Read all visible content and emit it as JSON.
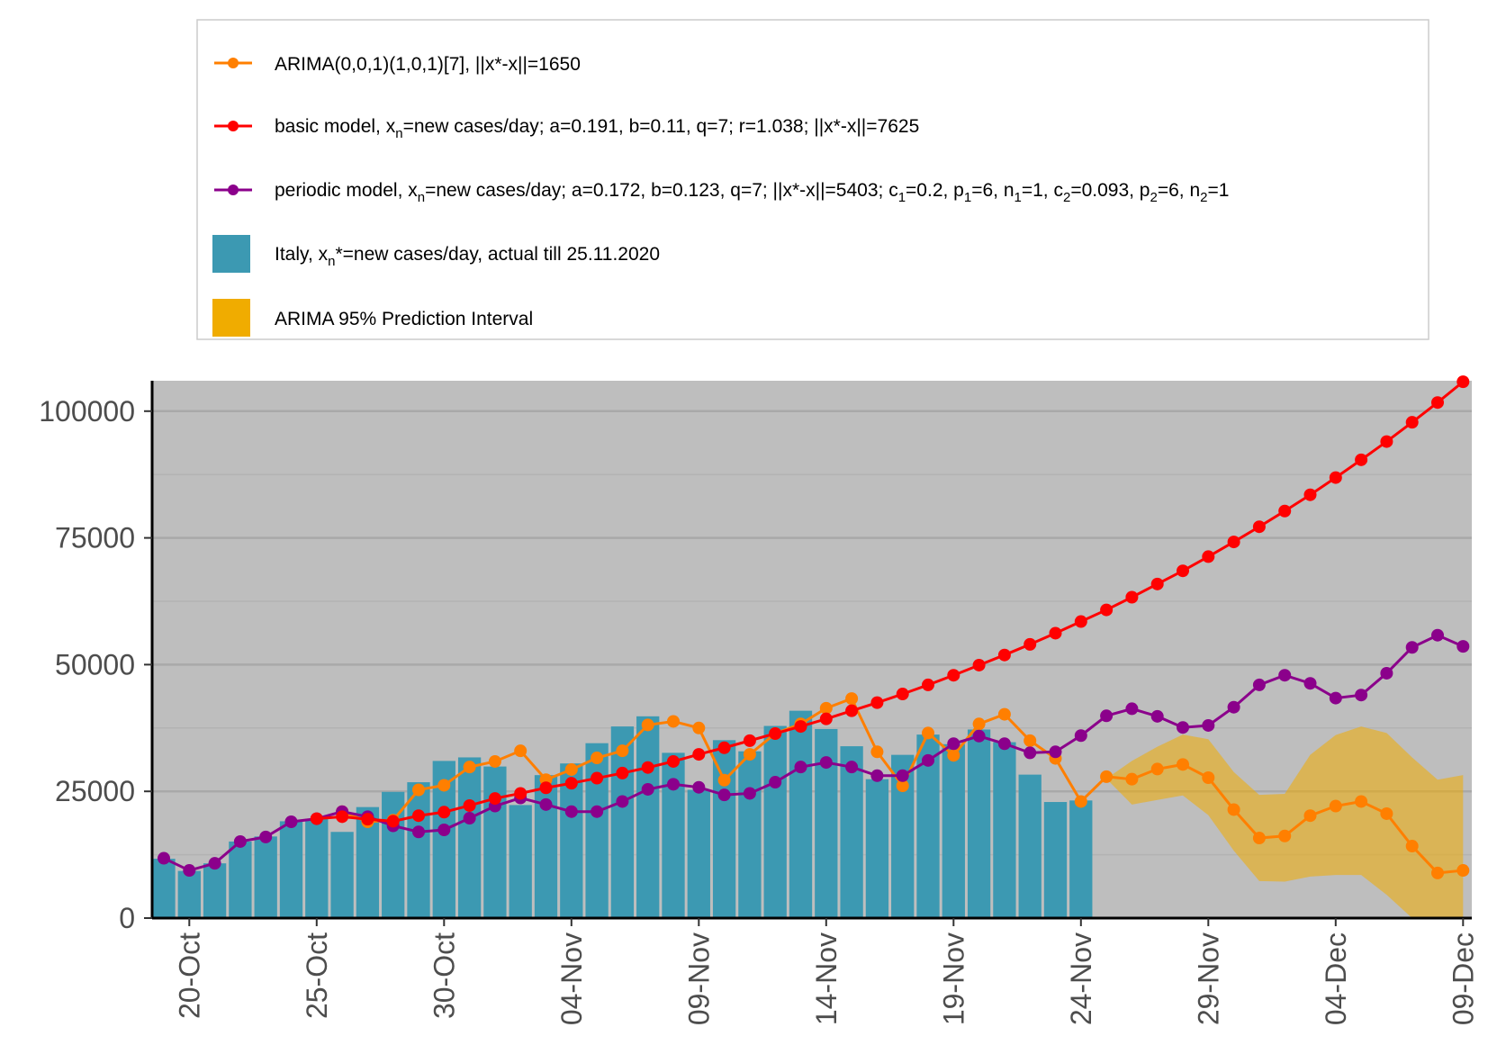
{
  "chart_data": {
    "type": "bar+line",
    "x_dates": [
      "19-Oct",
      "20-Oct",
      "21-Oct",
      "22-Oct",
      "23-Oct",
      "24-Oct",
      "25-Oct",
      "26-Oct",
      "27-Oct",
      "28-Oct",
      "29-Oct",
      "30-Oct",
      "31-Oct",
      "01-Nov",
      "02-Nov",
      "03-Nov",
      "04-Nov",
      "05-Nov",
      "06-Nov",
      "07-Nov",
      "08-Nov",
      "09-Nov",
      "10-Nov",
      "11-Nov",
      "12-Nov",
      "13-Nov",
      "14-Nov",
      "15-Nov",
      "16-Nov",
      "17-Nov",
      "18-Nov",
      "19-Nov",
      "20-Nov",
      "21-Nov",
      "22-Nov",
      "23-Nov",
      "24-Nov",
      "25-Nov",
      "26-Nov",
      "27-Nov",
      "28-Nov",
      "29-Nov",
      "30-Nov",
      "01-Dec",
      "02-Dec",
      "03-Dec",
      "04-Dec",
      "05-Dec",
      "06-Dec",
      "07-Dec",
      "08-Dec",
      "09-Dec"
    ],
    "x_ticks": [
      "20-Oct",
      "25-Oct",
      "30-Oct",
      "04-Nov",
      "09-Nov",
      "14-Nov",
      "19-Nov",
      "24-Nov",
      "29-Nov",
      "04-Dec",
      "09-Dec"
    ],
    "y_ticks": [
      0,
      25000,
      50000,
      75000,
      100000
    ],
    "y_tick_labels": [
      "0",
      "25000",
      "50000",
      "75000",
      "100000"
    ],
    "ylim": [
      0,
      106000
    ],
    "legend": {
      "arima": {
        "label": "ARIMA(0,0,1)(1,0,1)[7], ||x*-x||=1650",
        "color": "#ff7f00"
      },
      "basic": {
        "label_pre": "basic model,  x",
        "label_sub": "n",
        "label_post": "=new cases/day; a=0.191, b=0.11, q=7;  r=1.038; ||x*-x||=7625",
        "color": "#ff0000"
      },
      "periodic": {
        "label_parts": [
          "periodic model, x",
          "n",
          "=new cases/day; a=0.172, b=0.123, q=7; ||x*-x||=5403; c",
          "1",
          "=0.2, p",
          "1",
          "=6, n",
          "1",
          "=1, c",
          "2",
          "=0.093, p",
          "2",
          "=6, n",
          "2",
          "=1"
        ],
        "color": "#8b008b"
      },
      "actual": {
        "label_pre": "Italy, x",
        "label_sub": "n",
        "label_post": "*=new cases/day, actual till 25.11.2020",
        "color": "#3c99b2"
      },
      "interval": {
        "label": "ARIMA 95% Prediction Interval",
        "color": "#f0ac00"
      }
    },
    "series": [
      {
        "name": "Italy actual new cases/day",
        "kind": "bar",
        "start_index": 0,
        "values": [
          11700,
          9300,
          10800,
          15100,
          16100,
          19100,
          19600,
          17000,
          21900,
          24900,
          26800,
          31000,
          31700,
          29900,
          22300,
          28200,
          30500,
          34500,
          37800,
          39800,
          32600,
          25300,
          35100,
          32900,
          37900,
          40900,
          37300,
          33900,
          27400,
          32200,
          36200,
          34300,
          37200,
          34700,
          28300,
          22900,
          23200,
          0,
          0,
          0,
          0,
          0,
          0,
          0,
          0,
          0,
          0,
          0,
          0,
          0,
          0,
          0
        ]
      },
      {
        "name": "ARIMA",
        "kind": "line",
        "start_index": 7,
        "values": [
          21000,
          19000,
          19300,
          25300,
          26200,
          29800,
          30900,
          33000,
          27300,
          29300,
          31600,
          33000,
          38100,
          38800,
          37500,
          27200,
          32300,
          36400,
          38300,
          41400,
          43300,
          32800,
          26100,
          36500,
          32100,
          38300,
          40200,
          35000,
          31500,
          23000,
          27900,
          27400,
          29400,
          30300,
          27700,
          21400,
          15800,
          16200,
          20200,
          22100,
          23000,
          20600,
          14200,
          8900,
          9400
        ]
      },
      {
        "name": "basic model",
        "kind": "line",
        "start_index": 6,
        "values": [
          19600,
          20000,
          19500,
          19100,
          20200,
          20900,
          22200,
          23600,
          24600,
          25700,
          26600,
          27600,
          28600,
          29700,
          30900,
          32300,
          33600,
          35000,
          36400,
          37800,
          39300,
          40900,
          42500,
          44200,
          46000,
          47900,
          49900,
          51900,
          54000,
          56200,
          58500,
          60800,
          63300,
          65900,
          68500,
          71300,
          74200,
          77200,
          80300,
          83500,
          86900,
          90400,
          94000,
          97800,
          101700,
          105800
        ]
      },
      {
        "name": "periodic model",
        "kind": "line",
        "start_index": 0,
        "values": [
          11800,
          9400,
          10800,
          15100,
          16000,
          19000,
          19600,
          21000,
          20000,
          18200,
          17000,
          17400,
          19700,
          22100,
          23700,
          22400,
          21000,
          21000,
          23000,
          25400,
          26400,
          25800,
          24300,
          24600,
          26800,
          29800,
          30700,
          29800,
          28100,
          28100,
          31100,
          34400,
          35900,
          34400,
          32600,
          32800,
          36000,
          39900,
          41300,
          39800,
          37600,
          38000,
          41600,
          46000,
          47900,
          46300,
          43400,
          44000,
          48300,
          53400,
          55800,
          53600
        ]
      },
      {
        "name": "ARIMA 95% Prediction Interval",
        "kind": "band",
        "start_index": 37,
        "upper": [
          27500,
          31000,
          33800,
          36200,
          35300,
          28800,
          24300,
          24500,
          32200,
          36100,
          37800,
          36500,
          31700,
          27300,
          28200
        ],
        "lower": [
          27500,
          22400,
          23300,
          24200,
          20300,
          13300,
          7300,
          7200,
          8200,
          8500,
          8500,
          4600,
          0,
          0,
          0
        ]
      }
    ]
  }
}
